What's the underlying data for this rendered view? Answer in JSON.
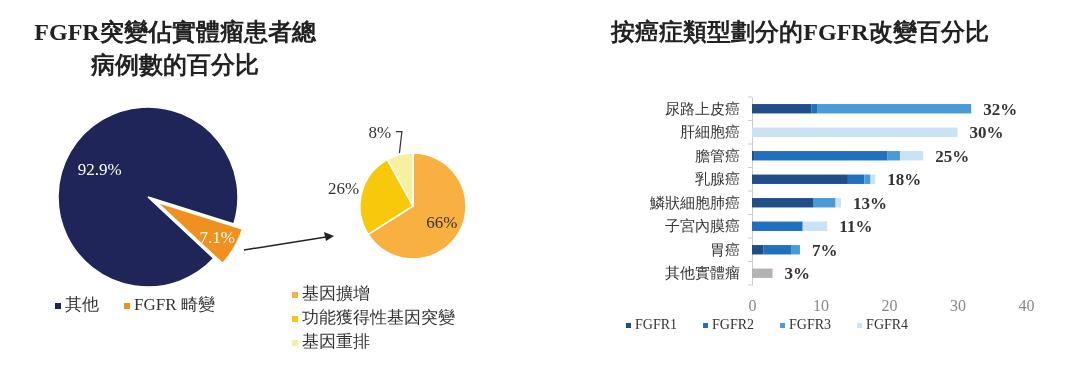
{
  "chart_data": [
    {
      "type": "pie",
      "title": "FGFR突變佔實體瘤患者總病例數的百分比",
      "categories": [
        "其他",
        "FGFR 畸變"
      ],
      "values": [
        92.9,
        7.1
      ],
      "colors": [
        "#1f2559",
        "#f0901e"
      ],
      "value_labels": [
        "92.9%",
        "7.1%"
      ],
      "legend": "bottom"
    },
    {
      "type": "pie",
      "categories": [
        "基因擴增",
        "功能獲得性基因突變",
        "基因重排"
      ],
      "values": [
        66,
        26,
        8
      ],
      "colors": [
        "#f8b040",
        "#f8c80a",
        "#f6f0a0"
      ],
      "value_labels": [
        "66%",
        "26%",
        "8%"
      ],
      "legend": "bottom"
    },
    {
      "type": "bar",
      "orientation": "horizontal",
      "stacked": true,
      "title": "按癌症類型劃分的FGFR改變百分比",
      "categories": [
        "尿路上皮癌",
        "肝細胞癌",
        "膽管癌",
        "乳腺癌",
        "鱗狀細胞肺癌",
        "子宮內膜癌",
        "胃癌",
        "其他實體瘤"
      ],
      "series": [
        {
          "name": "FGFR1",
          "color": "#1f4e89",
          "values": [
            8.7,
            0,
            0.3,
            14,
            9,
            0,
            1.7,
            0
          ]
        },
        {
          "name": "FGFR2",
          "color": "#2170c0",
          "values": [
            0.8,
            0,
            19.5,
            2.4,
            0,
            7.4,
            4,
            0
          ]
        },
        {
          "name": "FGFR3",
          "color": "#4a9ad8",
          "values": [
            22.5,
            0,
            1.8,
            0.9,
            3.2,
            0,
            1.3,
            0
          ]
        },
        {
          "name": "FGFR4",
          "color": "#c9e3f5",
          "values": [
            0,
            30,
            3.4,
            0.7,
            0.8,
            3.6,
            0,
            0
          ]
        },
        {
          "color": "#b3b3b3",
          "values": [
            0,
            0,
            0,
            0,
            0,
            0,
            0,
            3
          ]
        }
      ],
      "totals": [
        "32%",
        "30%",
        "25%",
        "18%",
        "13%",
        "11%",
        "7%",
        "3%"
      ],
      "xlim": [
        0,
        40
      ],
      "xticks": [
        0,
        10,
        20,
        30,
        40
      ],
      "legend": "bottom"
    }
  ]
}
